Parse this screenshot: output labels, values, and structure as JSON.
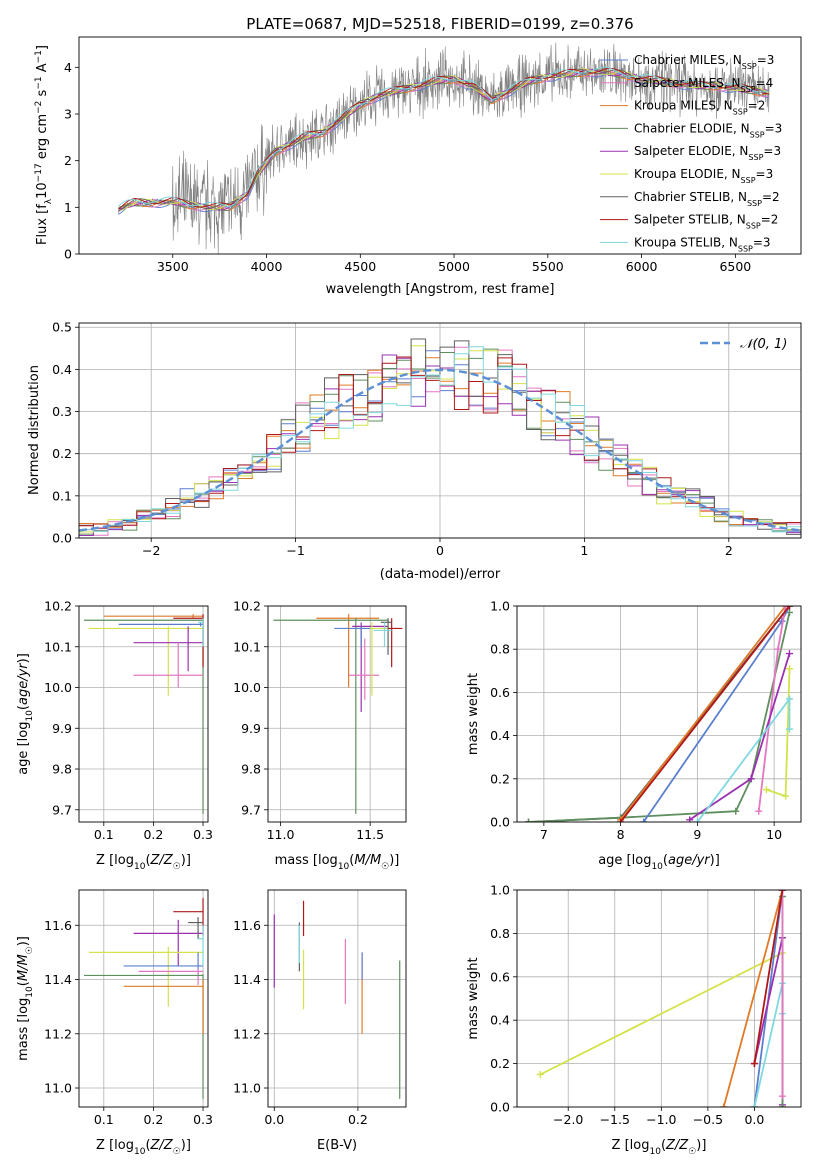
{
  "title": "PLATE=0687, MJD=52518, FIBERID=0199, z=0.376",
  "colors": {
    "chab_miles": "#5b7fcf",
    "salp_miles": "#e377c2",
    "krou_miles": "#e07a26",
    "chab_elodie": "#5e8f5e",
    "salp_elodie": "#9b30b0",
    "krou_elodie": "#d4e24a",
    "chab_stelib": "#606060",
    "salp_stelib": "#b01818",
    "krou_stelib": "#7fd8e0",
    "data": "#808080",
    "gauss": "#5b8fd6"
  },
  "chart_data": [
    {
      "id": "spectrum",
      "type": "line",
      "xlabel": "wavelength [Angstrom, rest frame]",
      "ylabel": "Flux [f_λ 10^-17 erg cm^-2 s^-1 A^-1]",
      "xlim": [
        3000,
        6850
      ],
      "ylim": [
        0,
        4.65
      ],
      "xticks": [
        3500,
        4000,
        4500,
        5000,
        5500,
        6000,
        6500
      ],
      "yticks": [
        0,
        1,
        2,
        3,
        4
      ],
      "grid": false,
      "legend_position": "top-right",
      "legend": [
        {
          "text": "Chabrier MILES, N",
          "sub": "SSP",
          "tail": "=3",
          "color": "chab_miles"
        },
        {
          "text": "Salpeter MILES, N",
          "sub": "SSP",
          "tail": "=4",
          "color": "salp_miles"
        },
        {
          "text": "Kroupa MILES, N",
          "sub": "SSP",
          "tail": "=2",
          "color": "krou_miles"
        },
        {
          "text": "Chabrier ELODIE, N",
          "sub": "SSP",
          "tail": "=3",
          "color": "chab_elodie"
        },
        {
          "text": "Salpeter ELODIE, N",
          "sub": "SSP",
          "tail": "=3",
          "color": "salp_elodie"
        },
        {
          "text": "Kroupa ELODIE, N",
          "sub": "SSP",
          "tail": "=3",
          "color": "krou_elodie"
        },
        {
          "text": "Chabrier STELIB, N",
          "sub": "SSP",
          "tail": "=2",
          "color": "chab_stelib"
        },
        {
          "text": "Salpeter STELIB, N",
          "sub": "SSP",
          "tail": "=2",
          "color": "salp_stelib"
        },
        {
          "text": "Kroupa STELIB, N",
          "sub": "SSP",
          "tail": "=3",
          "color": "krou_stelib"
        }
      ],
      "model_continuum": [
        [
          3210,
          0.95
        ],
        [
          3260,
          1.05
        ],
        [
          3300,
          1.1
        ],
        [
          3400,
          1.1
        ],
        [
          3500,
          1.12
        ],
        [
          3600,
          1.05
        ],
        [
          3700,
          1.0
        ],
        [
          3800,
          1.0
        ],
        [
          3900,
          1.3
        ],
        [
          3950,
          1.7
        ],
        [
          4050,
          2.2
        ],
        [
          4200,
          2.5
        ],
        [
          4300,
          2.6
        ],
        [
          4400,
          2.9
        ],
        [
          4500,
          3.2
        ],
        [
          4600,
          3.4
        ],
        [
          4700,
          3.5
        ],
        [
          4800,
          3.6
        ],
        [
          4900,
          3.7
        ],
        [
          5000,
          3.75
        ],
        [
          5100,
          3.6
        ],
        [
          5200,
          3.3
        ],
        [
          5300,
          3.5
        ],
        [
          5400,
          3.7
        ],
        [
          5500,
          3.8
        ],
        [
          5600,
          3.85
        ],
        [
          5700,
          3.9
        ],
        [
          5800,
          3.9
        ],
        [
          5900,
          3.85
        ],
        [
          6000,
          3.75
        ],
        [
          6100,
          3.7
        ],
        [
          6200,
          3.65
        ],
        [
          6300,
          3.6
        ],
        [
          6400,
          3.6
        ],
        [
          6500,
          3.55
        ],
        [
          6600,
          3.5
        ],
        [
          6680,
          3.45
        ]
      ]
    },
    {
      "id": "residuals",
      "type": "line",
      "xlabel": "(data-model)/error",
      "ylabel": "Normed distribution",
      "xlim": [
        -2.5,
        2.5
      ],
      "ylim": [
        0,
        0.51
      ],
      "xticks": [
        -2,
        -1,
        0,
        1,
        2
      ],
      "yticks": [
        0.0,
        0.1,
        0.2,
        0.3,
        0.4,
        0.5
      ],
      "grid": true,
      "legend_position": "top-right",
      "legend_label": "𝒩(0, 1)",
      "gauss": {
        "mu": 0,
        "sigma": 1
      }
    },
    {
      "id": "age_vs_Z",
      "type": "scatter",
      "xlabel": "Z [log10(Z/Z☉)]",
      "ylabel": "age [log10(age/yr)]",
      "xlim": [
        0.05,
        0.31
      ],
      "ylim": [
        9.67,
        10.2
      ],
      "xticks": [
        0.1,
        0.2,
        0.3
      ],
      "yticks": [
        9.7,
        9.8,
        9.9,
        10.0,
        10.1,
        10.2
      ],
      "grid": true,
      "errorbars": [
        {
          "c": "krou_miles",
          "x": 0.28,
          "y": 10.175,
          "xl": 0.1,
          "xh": 0.3,
          "yl": 10.17,
          "yh": 10.18
        },
        {
          "c": "chab_elodie",
          "x": 0.3,
          "y": 10.165,
          "xl": 0.06,
          "xh": 0.3,
          "yl": 9.69,
          "yh": 10.17
        },
        {
          "c": "chab_miles",
          "x": 0.295,
          "y": 10.155,
          "xl": 0.13,
          "xh": 0.3,
          "yl": 10.15,
          "yh": 10.16
        },
        {
          "c": "krou_elodie",
          "x": 0.23,
          "y": 10.145,
          "xl": 0.07,
          "xh": 0.3,
          "yl": 9.98,
          "yh": 10.15
        },
        {
          "c": "salp_stelib",
          "x": 0.3,
          "y": 10.17,
          "xl": 0.24,
          "xh": 0.3,
          "yl": 10.05,
          "yh": 10.18
        },
        {
          "c": "salp_elodie",
          "x": 0.27,
          "y": 10.11,
          "xl": 0.16,
          "xh": 0.3,
          "yl": 10.04,
          "yh": 10.15
        },
        {
          "c": "salp_miles",
          "x": 0.25,
          "y": 10.03,
          "xl": 0.16,
          "xh": 0.3,
          "yl": 10.0,
          "yh": 10.11
        },
        {
          "c": "krou_stelib",
          "x": 0.3,
          "y": 10.16,
          "xl": 0.29,
          "xh": 0.3,
          "yl": 10.1,
          "yh": 10.17
        }
      ]
    },
    {
      "id": "age_vs_mass",
      "type": "scatter",
      "xlabel": "mass [log10(M/M☉)]",
      "ylabel": "",
      "xlim": [
        10.93,
        11.7
      ],
      "ylim": [
        9.67,
        10.2
      ],
      "xticks": [
        11.0,
        11.5
      ],
      "yticks": [
        9.7,
        9.8,
        9.9,
        10.0,
        10.1,
        10.2
      ],
      "grid": true,
      "errorbars": [
        {
          "c": "krou_miles",
          "x": 11.38,
          "y": 10.17,
          "xl": 11.2,
          "xh": 11.55,
          "yl": 10.0,
          "yh": 10.18
        },
        {
          "c": "chab_elodie",
          "x": 11.42,
          "y": 10.165,
          "xl": 10.96,
          "xh": 11.6,
          "yl": 9.69,
          "yh": 10.17
        },
        {
          "c": "salp_stelib",
          "x": 11.62,
          "y": 10.145,
          "xl": 11.56,
          "xh": 11.68,
          "yl": 10.05,
          "yh": 10.17
        },
        {
          "c": "salp_elodie",
          "x": 11.45,
          "y": 10.15,
          "xl": 11.4,
          "xh": 11.6,
          "yl": 9.94,
          "yh": 10.16
        },
        {
          "c": "salp_miles",
          "x": 11.47,
          "y": 10.03,
          "xl": 11.38,
          "xh": 11.55,
          "yl": 9.97,
          "yh": 10.12
        },
        {
          "c": "krou_elodie",
          "x": 11.51,
          "y": 10.145,
          "xl": 11.35,
          "xh": 11.6,
          "yl": 9.98,
          "yh": 10.16
        },
        {
          "c": "chab_miles",
          "x": 11.45,
          "y": 10.145,
          "xl": 11.3,
          "xh": 11.5,
          "yl": 10.1,
          "yh": 10.15
        },
        {
          "c": "chab_stelib",
          "x": 11.6,
          "y": 10.16,
          "xl": 11.56,
          "xh": 11.62,
          "yl": 10.08,
          "yh": 10.17
        },
        {
          "c": "krou_stelib",
          "x": 11.58,
          "y": 10.14,
          "xl": 11.52,
          "xh": 11.62,
          "yl": 10.1,
          "yh": 10.16
        }
      ]
    },
    {
      "id": "mass_weight_vs_age",
      "type": "line",
      "xlabel": "age [log10(age/yr)]",
      "ylabel": "mass weight",
      "xlim": [
        6.65,
        10.35
      ],
      "ylim": [
        0,
        1
      ],
      "xticks": [
        7,
        8,
        9,
        10
      ],
      "yticks": [
        0.0,
        0.2,
        0.4,
        0.6,
        0.8,
        1.0
      ],
      "grid": true,
      "series": [
        {
          "c": "chab_stelib",
          "x": [
            6.8,
            8.0,
            10.2
          ],
          "y": [
            0.0,
            0.02,
            1.0
          ]
        },
        {
          "c": "chab_elodie",
          "x": [
            6.8,
            8.0,
            9.5,
            9.7,
            10.2
          ],
          "y": [
            0.0,
            0.02,
            0.05,
            0.2,
            0.97
          ]
        },
        {
          "c": "chab_miles",
          "x": [
            8.3,
            10.1,
            10.2
          ],
          "y": [
            0.0,
            0.93,
            1.0
          ]
        },
        {
          "c": "krou_miles",
          "x": [
            8.0,
            10.15
          ],
          "y": [
            0.01,
            1.0
          ]
        },
        {
          "c": "salp_miles",
          "x": [
            9.8,
            10.05,
            10.15
          ],
          "y": [
            0.05,
            0.8,
            1.0
          ]
        },
        {
          "c": "salp_elodie",
          "x": [
            8.9,
            9.7,
            10.2
          ],
          "y": [
            0.01,
            0.2,
            0.78
          ]
        },
        {
          "c": "krou_elodie",
          "x": [
            9.9,
            10.15,
            10.2
          ],
          "y": [
            0.15,
            0.12,
            0.71
          ]
        },
        {
          "c": "krou_stelib",
          "x": [
            9.0,
            10.2,
            10.2
          ],
          "y": [
            0.0,
            0.57,
            0.43
          ]
        },
        {
          "c": "salp_stelib",
          "x": [
            8.0,
            10.2
          ],
          "y": [
            0.0,
            1.0
          ]
        }
      ]
    },
    {
      "id": "mass_vs_Z",
      "type": "scatter",
      "xlabel": "Z [log10(Z/Z☉)]",
      "ylabel": "mass [log10(M/M☉)]",
      "xlim": [
        0.05,
        0.31
      ],
      "ylim": [
        10.93,
        11.73
      ],
      "xticks": [
        0.1,
        0.2,
        0.3
      ],
      "yticks": [
        11.0,
        11.2,
        11.4,
        11.6
      ],
      "grid": true,
      "errorbars": [
        {
          "c": "salp_stelib",
          "x": 0.3,
          "y": 11.65,
          "xl": 0.24,
          "xh": 0.3,
          "yl": 11.56,
          "yh": 11.7
        },
        {
          "c": "salp_elodie",
          "x": 0.25,
          "y": 11.57,
          "xl": 0.16,
          "xh": 0.3,
          "yl": 11.45,
          "yh": 11.62
        },
        {
          "c": "chab_stelib",
          "x": 0.29,
          "y": 11.61,
          "xl": 0.27,
          "xh": 0.3,
          "yl": 11.55,
          "yh": 11.63
        },
        {
          "c": "krou_elodie",
          "x": 0.23,
          "y": 11.5,
          "xl": 0.07,
          "xh": 0.3,
          "yl": 11.3,
          "yh": 11.52
        },
        {
          "c": "chab_miles",
          "x": 0.29,
          "y": 11.45,
          "xl": 0.14,
          "xh": 0.3,
          "yl": 11.4,
          "yh": 11.5
        },
        {
          "c": "salp_miles",
          "x": 0.29,
          "y": 11.43,
          "xl": 0.17,
          "xh": 0.3,
          "yl": 11.38,
          "yh": 11.44
        },
        {
          "c": "chab_elodie",
          "x": 0.3,
          "y": 11.415,
          "xl": 0.06,
          "xh": 0.3,
          "yl": 10.96,
          "yh": 11.42
        },
        {
          "c": "krou_miles",
          "x": 0.3,
          "y": 11.375,
          "xl": 0.14,
          "xh": 0.3,
          "yl": 11.2,
          "yh": 11.4
        },
        {
          "c": "krou_stelib",
          "x": 0.3,
          "y": 11.55,
          "xl": 0.29,
          "xh": 0.3,
          "yl": 11.45,
          "yh": 11.6
        }
      ]
    },
    {
      "id": "mass_vs_EBV",
      "type": "scatter",
      "xlabel": "E(B-V)",
      "ylabel": "",
      "xlim": [
        -0.015,
        0.315
      ],
      "ylim": [
        10.93,
        11.73
      ],
      "xticks": [
        0.0,
        0.2
      ],
      "yticks": [
        11.0,
        11.2,
        11.4,
        11.6
      ],
      "grid": true,
      "errorbars": [
        {
          "c": "salp_elodie",
          "x": 0.0,
          "y": 11.5,
          "xl": 0.0,
          "xh": 0.0,
          "yl": 11.37,
          "yh": 11.64
        },
        {
          "c": "chab_stelib",
          "x": 0.06,
          "y": 11.52,
          "xl": 0.06,
          "xh": 0.06,
          "yl": 11.43,
          "yh": 11.61
        },
        {
          "c": "krou_stelib",
          "x": 0.06,
          "y": 11.52,
          "xl": 0.06,
          "xh": 0.06,
          "yl": 11.46,
          "yh": 11.6
        },
        {
          "c": "salp_stelib",
          "x": 0.07,
          "y": 11.63,
          "xl": 0.07,
          "xh": 0.07,
          "yl": 11.56,
          "yh": 11.69
        },
        {
          "c": "krou_elodie",
          "x": 0.07,
          "y": 11.4,
          "xl": 0.07,
          "xh": 0.07,
          "yl": 11.29,
          "yh": 11.51
        },
        {
          "c": "salp_miles",
          "x": 0.17,
          "y": 11.43,
          "xl": 0.17,
          "xh": 0.17,
          "yl": 11.31,
          "yh": 11.55
        },
        {
          "c": "krou_miles",
          "x": 0.21,
          "y": 11.35,
          "xl": 0.21,
          "xh": 0.21,
          "yl": 11.2,
          "yh": 11.5
        },
        {
          "c": "chab_miles",
          "x": 0.21,
          "y": 11.45,
          "xl": 0.21,
          "xh": 0.21,
          "yl": 11.4,
          "yh": 11.5
        },
        {
          "c": "chab_elodie",
          "x": 0.3,
          "y": 11.2,
          "xl": 0.3,
          "xh": 0.3,
          "yl": 10.96,
          "yh": 11.47
        }
      ]
    },
    {
      "id": "mass_weight_vs_Z",
      "type": "line",
      "xlabel": "Z [log10(Z/Z☉)]",
      "ylabel": "mass weight",
      "xlim": [
        -2.55,
        0.5
      ],
      "ylim": [
        0,
        1
      ],
      "xticks": [
        -2.0,
        -1.5,
        -1.0,
        -0.5,
        0.0
      ],
      "yticks": [
        0.0,
        0.2,
        0.4,
        0.6,
        0.8,
        1.0
      ],
      "grid": true,
      "series": [
        {
          "c": "krou_elodie",
          "x": [
            -2.3,
            0.3,
            0.3
          ],
          "y": [
            0.15,
            0.71,
            0.0
          ]
        },
        {
          "c": "krou_miles",
          "x": [
            -0.33,
            0.3
          ],
          "y": [
            0.0,
            1.0
          ]
        },
        {
          "c": "chab_miles",
          "x": [
            0.0,
            0.3
          ],
          "y": [
            0.0,
            1.0
          ]
        },
        {
          "c": "krou_stelib",
          "x": [
            0.0,
            0.3,
            0.3
          ],
          "y": [
            0.0,
            0.57,
            0.43
          ]
        },
        {
          "c": "salp_elodie",
          "x": [
            0.0,
            0.3,
            0.3
          ],
          "y": [
            0.2,
            0.78,
            0.01
          ]
        },
        {
          "c": "chab_elodie",
          "x": [
            0.3,
            0.3
          ],
          "y": [
            0.0,
            0.97
          ]
        },
        {
          "c": "salp_miles",
          "x": [
            0.3,
            0.3
          ],
          "y": [
            0.05,
            1.0
          ]
        },
        {
          "c": "salp_stelib",
          "x": [
            0.0,
            0.3
          ],
          "y": [
            0.2,
            1.0
          ]
        }
      ]
    }
  ]
}
